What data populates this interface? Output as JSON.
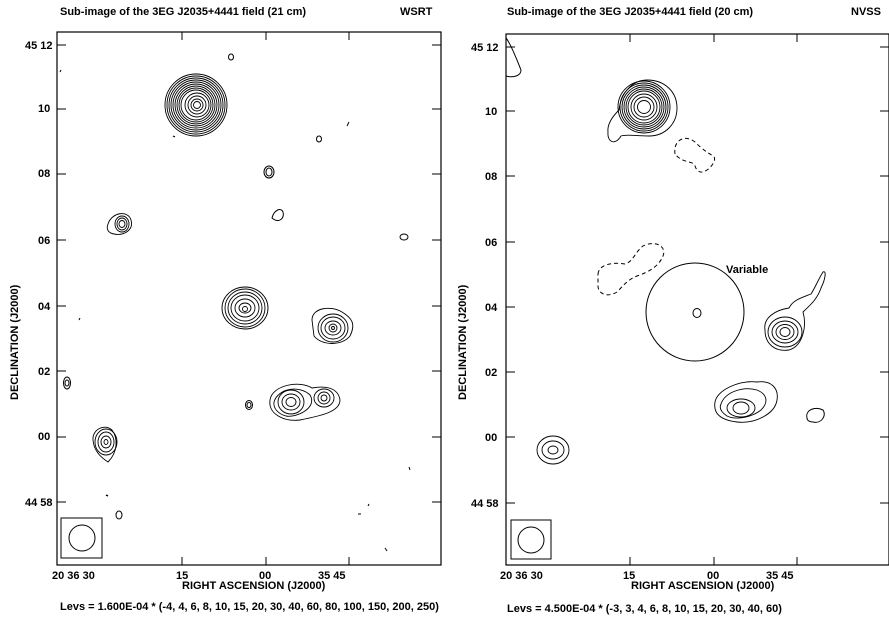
{
  "left": {
    "title": "Sub-image of the 3EG J2035+4441 field (21 cm)",
    "telescope": "WSRT",
    "ylabel": "DECLINATION (J2000)",
    "xlabel": "RIGHT ASCENSION (J2000)",
    "yticks": [
      "45 12",
      "10",
      "08",
      "06",
      "04",
      "02",
      "00",
      "44 58"
    ],
    "xticks": [
      "20 36 30",
      "15",
      "00",
      "35 45"
    ],
    "levels": "Levs = 1.600E-04 * (-4, 4, 6, 8, 10, 15, 20, 30, 40, 60, 80, 100, 150, 200, 250)"
  },
  "right": {
    "title": "Sub-image of the 3EG J2035+4441 field (20 cm)",
    "telescope": "NVSS",
    "ylabel": "DECLINATION (J2000)",
    "xlabel": "RIGHT ASCENSION (J2000)",
    "yticks": [
      "45 12",
      "10",
      "08",
      "06",
      "04",
      "02",
      "00",
      "44 58"
    ],
    "xticks": [
      "20 36 30",
      "15",
      "00",
      "35 45"
    ],
    "annotation": "Variable",
    "levels": "Levs = 4.500E-04 * (-3, 3, 4, 6, 8, 10, 15, 20, 30, 40, 60)"
  }
}
